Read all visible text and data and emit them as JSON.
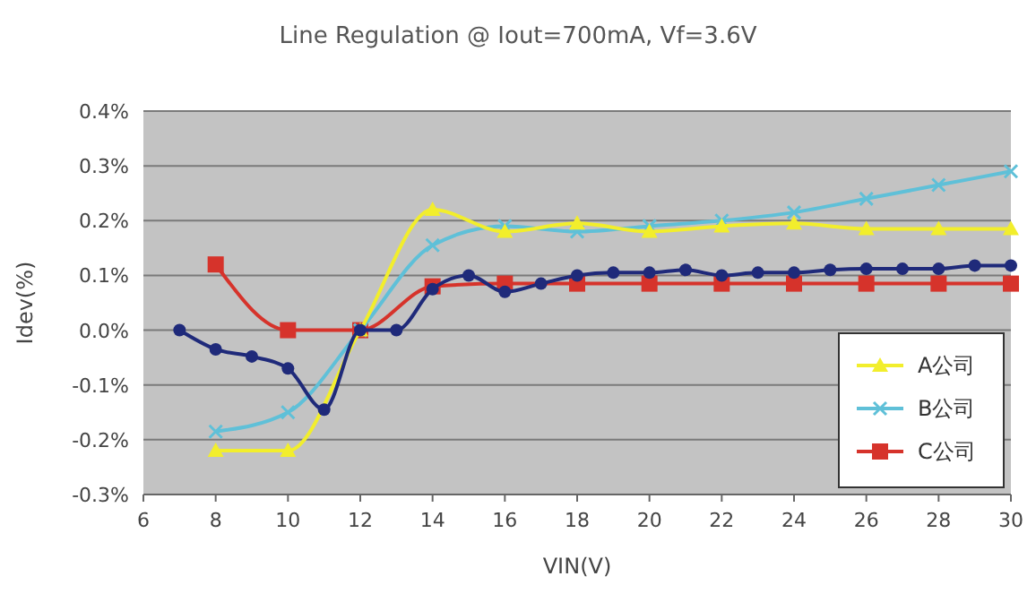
{
  "chart_data": {
    "type": "line",
    "title": "Line Regulation @ Iout=700mA, Vf=3.6V",
    "xlabel": "VIN(V)",
    "ylabel": "Idev(%)",
    "xlim": [
      6,
      30
    ],
    "xticks": [
      6,
      8,
      10,
      12,
      14,
      16,
      18,
      20,
      22,
      24,
      26,
      28,
      30
    ],
    "ylim": [
      -0.3,
      0.4
    ],
    "yticks": [
      {
        "value": -0.3,
        "label": "-0.3%"
      },
      {
        "value": -0.2,
        "label": "-0.2%"
      },
      {
        "value": -0.1,
        "label": "-0.1%"
      },
      {
        "value": 0,
        "label": "0.0%"
      },
      {
        "value": 0.1,
        "label": "0.1%"
      },
      {
        "value": 0.2,
        "label": "0.2%"
      },
      {
        "value": 0.3,
        "label": "0.3%"
      },
      {
        "value": 0.4,
        "label": "0.4%"
      }
    ],
    "grid": "y",
    "legend": "bottom right",
    "series": [
      {
        "color": "#1f2a7a",
        "marker": "circle",
        "x": [
          7,
          8,
          9,
          10,
          11,
          12,
          13,
          14,
          15,
          16,
          17,
          18,
          19,
          20,
          21,
          22,
          23,
          24,
          25,
          26,
          27,
          28,
          29,
          30
        ],
        "values": [
          0,
          -0.035,
          -0.048,
          -0.07,
          -0.145,
          0,
          0,
          0.075,
          0.1,
          0.07,
          0.085,
          0.1,
          0.105,
          0.105,
          0.11,
          0.1,
          0.105,
          0.105,
          0.11,
          0.112,
          0.112,
          0.112,
          0.118,
          0.118
        ]
      },
      {
        "name": "A公司",
        "color": "#f2ee2c",
        "marker": "triangle",
        "x": [
          8,
          10,
          12,
          14,
          16,
          18,
          20,
          22,
          24,
          26,
          28,
          30
        ],
        "values": [
          -0.22,
          -0.22,
          0,
          0.22,
          0.18,
          0.195,
          0.18,
          0.19,
          0.195,
          0.185,
          0.185,
          0.185
        ]
      },
      {
        "name": "B公司",
        "color": "#5fc0d8",
        "marker": "cross",
        "x": [
          8,
          10,
          12,
          14,
          16,
          18,
          20,
          22,
          24,
          26,
          28,
          30
        ],
        "values": [
          -0.185,
          -0.15,
          0,
          0.155,
          0.19,
          0.18,
          0.19,
          0.2,
          0.215,
          0.24,
          0.265,
          0.29
        ]
      },
      {
        "name": "C公司",
        "color": "#d6332b",
        "marker": "square",
        "x": [
          8,
          10,
          12,
          14,
          16,
          18,
          20,
          22,
          24,
          26,
          28,
          30
        ],
        "values": [
          0.12,
          0,
          0,
          0.08,
          0.085,
          0.085,
          0.085,
          0.085,
          0.085,
          0.085,
          0.085,
          0.085
        ]
      }
    ]
  }
}
